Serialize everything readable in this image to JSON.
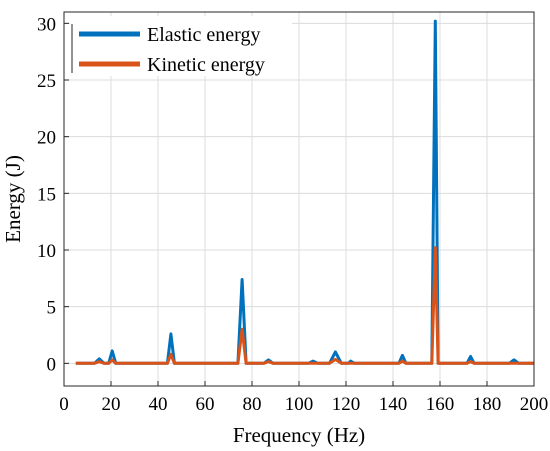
{
  "chart_data": {
    "type": "line",
    "xlabel": "Frequency (Hz)",
    "ylabel": "Energy (J)",
    "xlim": [
      0,
      200
    ],
    "ylim": [
      -2,
      31
    ],
    "xticks": [
      0,
      20,
      40,
      60,
      80,
      100,
      120,
      140,
      160,
      180,
      200
    ],
    "yticks": [
      0,
      5,
      10,
      15,
      20,
      25,
      30
    ],
    "grid": true,
    "legend": "top-left",
    "series": [
      {
        "name": "Elastic energy",
        "color": "#0072BD",
        "points": [
          [
            5,
            0
          ],
          [
            13,
            0
          ],
          [
            15,
            0.4
          ],
          [
            17,
            0
          ],
          [
            19,
            0
          ],
          [
            20.5,
            1.1
          ],
          [
            22,
            0
          ],
          [
            44,
            0
          ],
          [
            45.5,
            2.6
          ],
          [
            47,
            0
          ],
          [
            74,
            0
          ],
          [
            75.8,
            7.4
          ],
          [
            77.5,
            0
          ],
          [
            85,
            0
          ],
          [
            87,
            0.3
          ],
          [
            89,
            0
          ],
          [
            104,
            0
          ],
          [
            106,
            0.2
          ],
          [
            108,
            0
          ],
          [
            113,
            0
          ],
          [
            115.5,
            1.0
          ],
          [
            118,
            0
          ],
          [
            121,
            0
          ],
          [
            122,
            0.2
          ],
          [
            123.5,
            0
          ],
          [
            142.5,
            0
          ],
          [
            144,
            0.7
          ],
          [
            145.5,
            0
          ],
          [
            156.5,
            0
          ],
          [
            158,
            30.2
          ],
          [
            159.2,
            0
          ],
          [
            171.5,
            0
          ],
          [
            173,
            0.6
          ],
          [
            174.5,
            0
          ],
          [
            189.5,
            0
          ],
          [
            191.5,
            0.3
          ],
          [
            193.5,
            0
          ],
          [
            200,
            0
          ]
        ]
      },
      {
        "name": "Kinetic energy",
        "color": "#D95319",
        "points": [
          [
            5,
            0
          ],
          [
            13,
            0
          ],
          [
            15,
            0.15
          ],
          [
            17,
            0
          ],
          [
            19,
            0
          ],
          [
            20.5,
            0.3
          ],
          [
            22,
            0
          ],
          [
            44,
            0
          ],
          [
            45.5,
            0.8
          ],
          [
            47,
            0
          ],
          [
            74,
            0
          ],
          [
            75.8,
            3.0
          ],
          [
            77.5,
            0
          ],
          [
            85,
            0
          ],
          [
            87,
            0.15
          ],
          [
            89,
            0
          ],
          [
            113,
            0
          ],
          [
            115.5,
            0.35
          ],
          [
            118,
            0
          ],
          [
            142.5,
            0
          ],
          [
            144,
            0.2
          ],
          [
            145.5,
            0
          ],
          [
            156.5,
            0
          ],
          [
            158,
            10.2
          ],
          [
            159.2,
            0
          ],
          [
            171.5,
            0
          ],
          [
            173,
            0.15
          ],
          [
            174.5,
            0
          ],
          [
            200,
            0
          ]
        ]
      }
    ]
  }
}
